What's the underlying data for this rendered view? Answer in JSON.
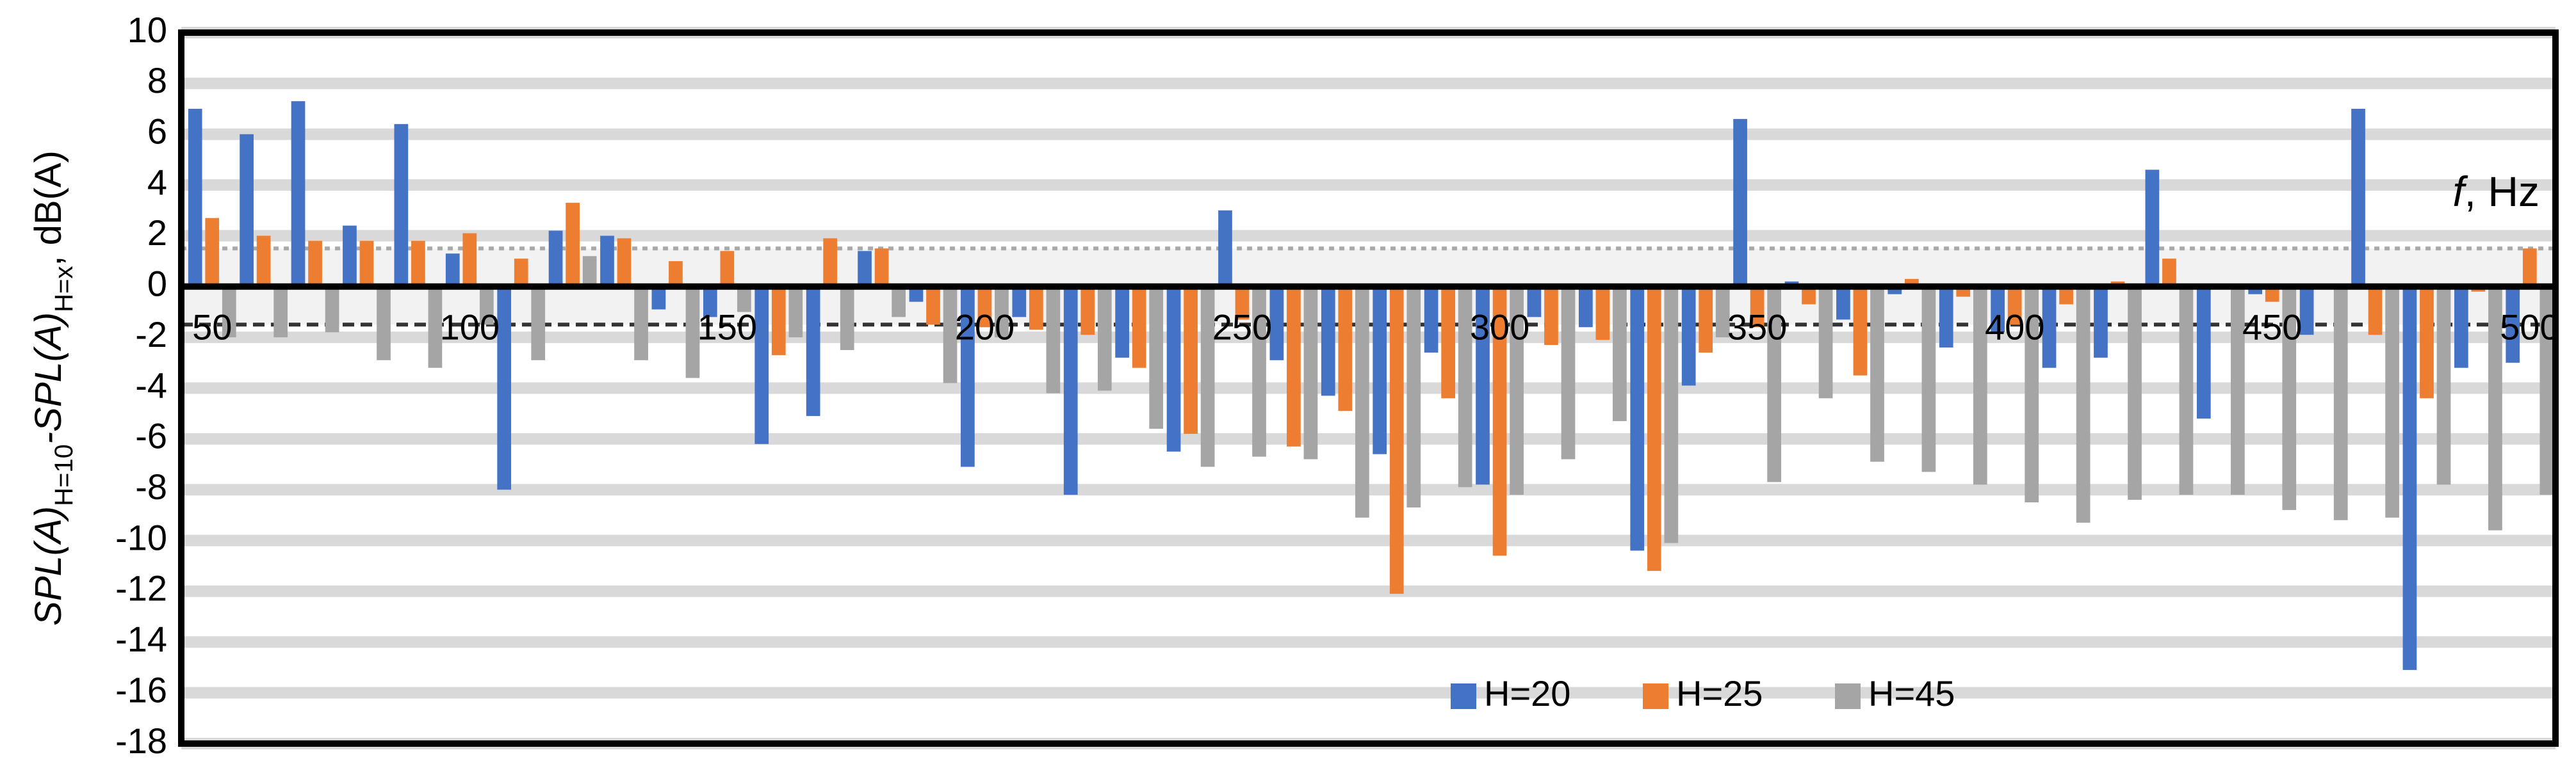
{
  "chart_data": {
    "type": "bar",
    "ylabel": [
      "SPL(A)",
      "H=10",
      "-SPL(A)",
      "H=x",
      ", dB(A)"
    ],
    "annotation": [
      "f",
      ", Hz"
    ],
    "x": [
      50,
      60,
      70,
      80,
      90,
      100,
      110,
      120,
      130,
      140,
      150,
      160,
      170,
      180,
      190,
      200,
      210,
      220,
      230,
      240,
      250,
      260,
      270,
      280,
      290,
      300,
      310,
      320,
      330,
      340,
      350,
      360,
      370,
      380,
      390,
      400,
      410,
      420,
      430,
      440,
      450,
      460,
      470,
      480,
      490,
      500
    ],
    "xlim": [
      44,
      505
    ],
    "xticks": [
      50,
      100,
      150,
      200,
      250,
      300,
      350,
      400,
      450,
      500
    ],
    "ylim": [
      -18,
      10
    ],
    "yticks": [
      -18,
      -16,
      -14,
      -12,
      -10,
      -8,
      -6,
      -4,
      -2,
      0,
      2,
      4,
      6,
      8,
      10
    ],
    "grid": true,
    "reference_lines": [
      {
        "value": 1.5,
        "style": "dotted",
        "color": "#aaaaaa"
      },
      {
        "value": -1.5,
        "style": "dashed",
        "color": "#333333"
      }
    ],
    "legend": "bottom",
    "series": [
      {
        "name": "H=20",
        "color": "#4472c4",
        "values": [
          7.0,
          6.0,
          7.3,
          2.4,
          6.4,
          1.3,
          -8.0,
          2.2,
          2.0,
          -0.9,
          -1.2,
          -6.2,
          -5.1,
          1.4,
          -0.6,
          -7.1,
          -1.2,
          -8.2,
          -2.8,
          -6.5,
          3.0,
          -2.9,
          -4.3,
          -6.6,
          -2.6,
          -7.8,
          -1.2,
          -1.6,
          -10.4,
          -3.9,
          6.6,
          0.2,
          -1.3,
          -0.3,
          -2.4,
          -1.8,
          -3.2,
          -2.8,
          4.6,
          -5.2,
          -0.3,
          -1.9,
          7.0,
          -15.1,
          -3.2,
          -3.0
        ]
      },
      {
        "name": "H=25",
        "color": "#ed7d31",
        "values": [
          2.7,
          2.0,
          1.8,
          1.8,
          1.8,
          2.1,
          1.1,
          3.3,
          1.9,
          1.0,
          1.4,
          -2.7,
          1.9,
          1.5,
          -1.5,
          -1.6,
          -1.7,
          -1.9,
          -3.2,
          -5.8,
          -1.3,
          -6.3,
          -4.9,
          -12.1,
          -4.4,
          -10.6,
          -2.3,
          -2.1,
          -11.2,
          -2.6,
          -1.6,
          -0.7,
          -3.5,
          0.3,
          -0.4,
          -1.5,
          -0.7,
          0.2,
          1.1,
          0.1,
          -0.6,
          0.1,
          -1.9,
          -4.4,
          -0.2,
          1.5
        ]
      },
      {
        "name": "H=45",
        "color": "#a5a5a5",
        "values": [
          -2.0,
          -2.0,
          -1.8,
          -2.9,
          -3.2,
          -1.5,
          -2.9,
          1.2,
          -2.9,
          -3.6,
          -1.0,
          -2.0,
          -2.5,
          -1.2,
          -3.8,
          -2.0,
          -4.2,
          -4.1,
          -5.6,
          -7.1,
          -6.7,
          -6.8,
          -9.1,
          -8.7,
          -7.9,
          -8.2,
          -6.8,
          -5.3,
          -10.1,
          -2.0,
          -7.7,
          -4.4,
          -6.9,
          -7.3,
          -7.8,
          -8.5,
          -9.3,
          -8.4,
          -8.2,
          -8.2,
          -8.8,
          -9.2,
          -9.1,
          -7.8,
          -9.6,
          -8.2
        ]
      }
    ]
  }
}
